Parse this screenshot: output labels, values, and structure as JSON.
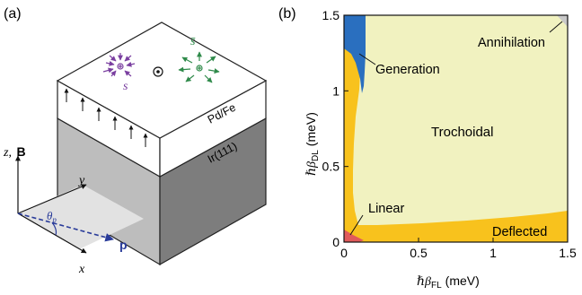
{
  "panel_a": {
    "label": "(a)",
    "layer_top": "Pd/Fe",
    "layer_bottom": "Ir(111)",
    "spin_s": "s",
    "spin_sbar": "s̄",
    "axis_zB_z": "z,",
    "axis_zB_B": "B",
    "axis_y": "y",
    "axis_x": "x",
    "angle": "θ",
    "angle_sub": "p",
    "vector_p": "p",
    "colors": {
      "purple": "#7a3fa0",
      "green": "#2f8a4a",
      "blue": "#2a3c9a"
    }
  },
  "panel_b": {
    "label": "(b)",
    "regions": {
      "generation": "Generation",
      "annihilation": "Annihilation",
      "trochoidal": "Trochoidal",
      "linear": "Linear",
      "deflected": "Deflected"
    },
    "colors": {
      "trochoidal": "#f1f2c0",
      "deflected": "#f8c21d",
      "generation": "#2a6fbf",
      "annihilation": "#c9c9c9",
      "linear": "#e05a5a"
    }
  },
  "chart_data": {
    "type": "heatmap",
    "title": "",
    "xlabel_sym": "ℏβ",
    "xlabel_sub": "FL",
    "xlabel_unit": "(meV)",
    "ylabel_sym": "ℏβ",
    "ylabel_sub": "DL",
    "ylabel_unit": "(meV)",
    "xlim": [
      0,
      1.5
    ],
    "ylim": [
      0,
      1.5
    ],
    "xticks": [
      0,
      0.5,
      1,
      1.5
    ],
    "xtick_labels": [
      "0",
      "0.5",
      "1",
      "1.5"
    ],
    "yticks": [
      0,
      0.5,
      1,
      1.5
    ],
    "ytick_labels": [
      "0",
      "0.5",
      "1",
      "1.5"
    ],
    "regions": [
      "Trochoidal",
      "Deflected",
      "Generation",
      "Annihilation",
      "Linear"
    ]
  }
}
